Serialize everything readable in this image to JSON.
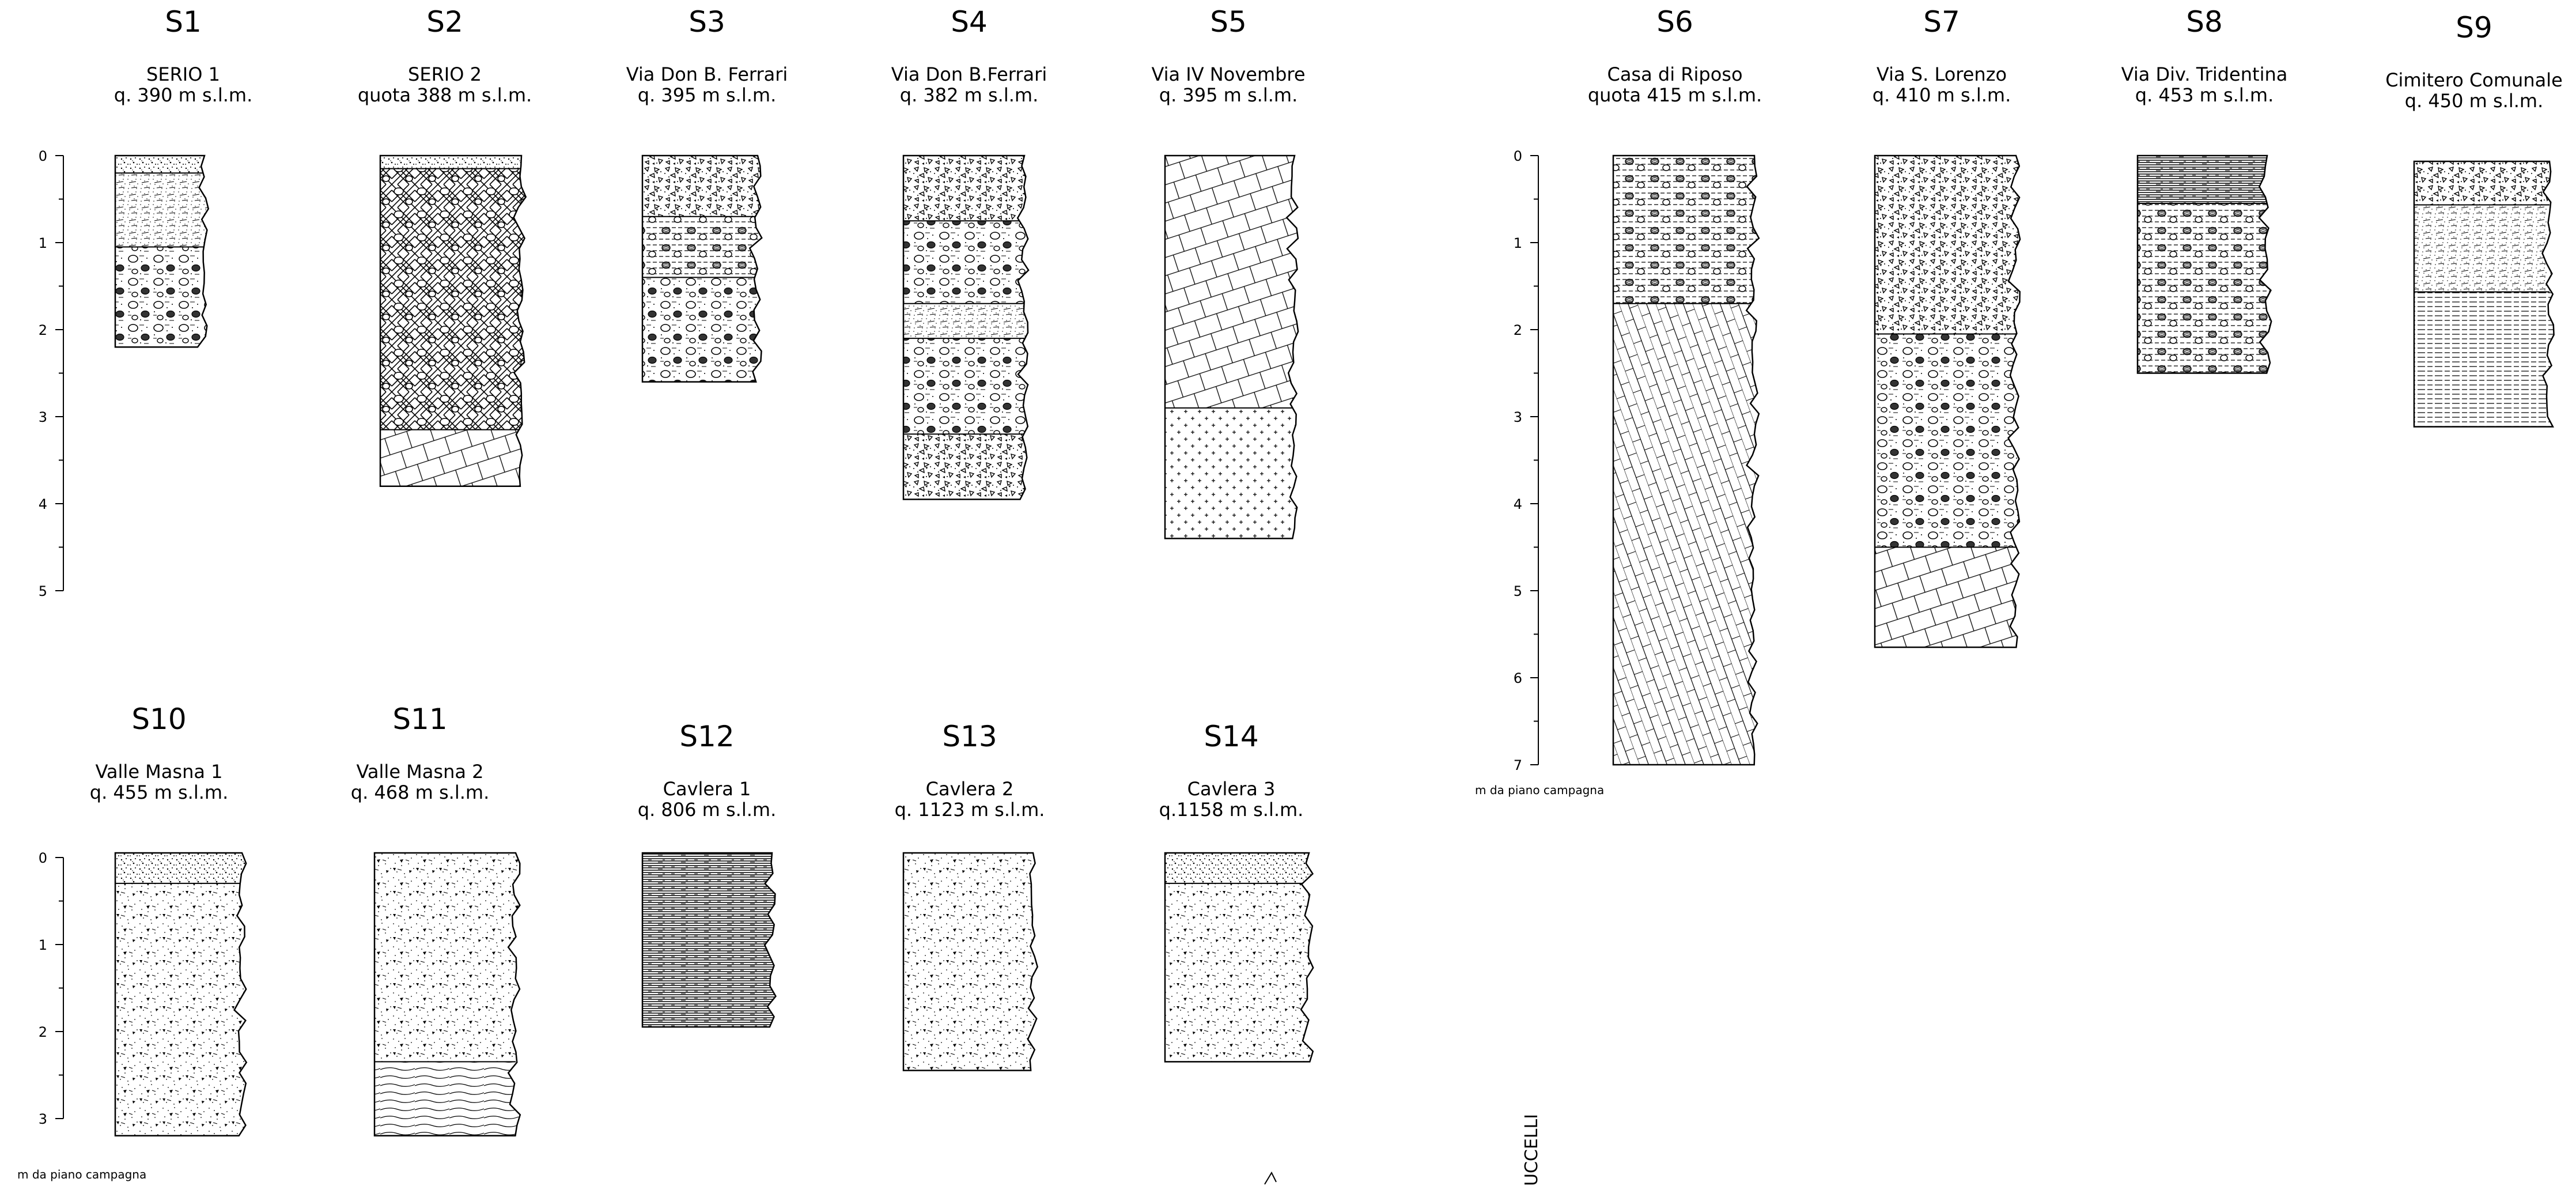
{
  "depth_unit_label": "m da piano campagna",
  "clipped_margin_text": "UCCELLI",
  "colors": {
    "ink": "#000000",
    "paper": "#ffffff"
  },
  "boreholes": [
    {
      "id": "S1",
      "name": "SERIO 1",
      "elevation": "q. 390 m s.l.m.",
      "total_depth_m": 2.2,
      "layers": [
        {
          "from": 0,
          "to": 0.2,
          "pattern": "topsoil"
        },
        {
          "from": 0.2,
          "to": 1.05,
          "pattern": "sand-lenses"
        },
        {
          "from": 1.05,
          "to": 2.2,
          "pattern": "gravel-sand"
        }
      ]
    },
    {
      "id": "S2",
      "name": "SERIO 2",
      "elevation": "quota 388 m s.l.m.",
      "total_depth_m": 3.8,
      "layers": [
        {
          "from": 0,
          "to": 0.15,
          "pattern": "topsoil"
        },
        {
          "from": 0.15,
          "to": 3.15,
          "pattern": "cross-hatch-gravel"
        },
        {
          "from": 3.15,
          "to": 3.8,
          "pattern": "bedrock"
        }
      ]
    },
    {
      "id": "S3",
      "name": "Via Don B. Ferrari",
      "elevation": "q. 395 m s.l.m.",
      "total_depth_m": 2.6,
      "layers": [
        {
          "from": 0,
          "to": 0.7,
          "pattern": "breccia"
        },
        {
          "from": 0.7,
          "to": 1.4,
          "pattern": "silty-gravel"
        },
        {
          "from": 1.4,
          "to": 2.6,
          "pattern": "gravel-sand"
        }
      ]
    },
    {
      "id": "S4",
      "name": "Via Don B.Ferrari",
      "elevation": "q. 382 m s.l.m.",
      "total_depth_m": 3.95,
      "layers": [
        {
          "from": 0,
          "to": 0.75,
          "pattern": "breccia"
        },
        {
          "from": 0.75,
          "to": 1.7,
          "pattern": "gravel-sand"
        },
        {
          "from": 1.7,
          "to": 2.1,
          "pattern": "sand-lenses"
        },
        {
          "from": 2.1,
          "to": 3.2,
          "pattern": "gravel-sand"
        },
        {
          "from": 3.2,
          "to": 3.95,
          "pattern": "breccia"
        }
      ]
    },
    {
      "id": "S5",
      "name": "Via IV Novembre",
      "elevation": "q. 395 m s.l.m.",
      "total_depth_m": 4.4,
      "layers": [
        {
          "from": 0,
          "to": 2.9,
          "pattern": "bedrock"
        },
        {
          "from": 2.9,
          "to": 4.4,
          "pattern": "crosses"
        }
      ]
    },
    {
      "id": "S6",
      "name": "Casa di Riposo",
      "elevation": "quota 415 m s.l.m.",
      "total_depth_m": 7.0,
      "layers": [
        {
          "from": 0,
          "to": 1.7,
          "pattern": "silty-gravel"
        },
        {
          "from": 1.7,
          "to": 7.0,
          "pattern": "bedrock-wedge"
        }
      ]
    },
    {
      "id": "S7",
      "name": "Via S. Lorenzo",
      "elevation": "q. 410 m s.l.m.",
      "total_depth_m": 5.65,
      "layers": [
        {
          "from": 0,
          "to": 2.05,
          "pattern": "breccia"
        },
        {
          "from": 2.05,
          "to": 4.5,
          "pattern": "gravel-sand"
        },
        {
          "from": 4.5,
          "to": 5.65,
          "pattern": "bedrock"
        }
      ]
    },
    {
      "id": "S8",
      "name": "Via Div. Tridentina",
      "elevation": "q. 453 m s.l.m.",
      "total_depth_m": 2.5,
      "layers": [
        {
          "from": 0,
          "to": 0.55,
          "pattern": "laminated"
        },
        {
          "from": 0.55,
          "to": 2.5,
          "pattern": "silty-gravel"
        }
      ]
    },
    {
      "id": "S9",
      "name": "Cimitero Comunale",
      "elevation": "q. 450 m s.l.m.",
      "total_depth_m": 3.05,
      "layers": [
        {
          "from": 0,
          "to": 0.5,
          "pattern": "breccia"
        },
        {
          "from": 0.5,
          "to": 1.5,
          "pattern": "sand-lenses"
        },
        {
          "from": 1.5,
          "to": 3.05,
          "pattern": "silt"
        }
      ]
    },
    {
      "id": "S10",
      "name": "Valle Masna 1",
      "elevation": "q. 455 m s.l.m.",
      "total_depth_m": 3.25,
      "layers": [
        {
          "from": 0,
          "to": 0.35,
          "pattern": "topsoil"
        },
        {
          "from": 0.35,
          "to": 3.25,
          "pattern": "debris"
        }
      ]
    },
    {
      "id": "S11",
      "name": "Valle Masna 2",
      "elevation": "q. 468 m s.l.m.",
      "total_depth_m": 3.25,
      "layers": [
        {
          "from": 0,
          "to": 2.4,
          "pattern": "debris"
        },
        {
          "from": 2.4,
          "to": 3.25,
          "pattern": "wavy-lines"
        }
      ]
    },
    {
      "id": "S12",
      "name": "Cavlera 1",
      "elevation": "q. 806 m s.l.m.",
      "total_depth_m": 2.0,
      "layers": [
        {
          "from": 0,
          "to": 2.0,
          "pattern": "laminated"
        }
      ]
    },
    {
      "id": "S13",
      "name": "Cavlera 2",
      "elevation": "q. 1123 m s.l.m.",
      "total_depth_m": 2.5,
      "layers": [
        {
          "from": 0,
          "to": 2.5,
          "pattern": "debris"
        }
      ]
    },
    {
      "id": "S14",
      "name": "Cavlera 3",
      "elevation": "q.1158 m s.l.m.",
      "total_depth_m": 2.4,
      "layers": [
        {
          "from": 0,
          "to": 0.35,
          "pattern": "topsoil"
        },
        {
          "from": 0.35,
          "to": 2.4,
          "pattern": "debris"
        }
      ]
    }
  ],
  "depth_scales": [
    {
      "name": "scale-top-left",
      "ticks": [
        "0",
        "1",
        "2",
        "3",
        "4",
        "5"
      ]
    },
    {
      "name": "scale-top-right",
      "ticks": [
        "0",
        "1",
        "2",
        "3",
        "4",
        "5",
        "6",
        "7"
      ]
    },
    {
      "name": "scale-bottom-left",
      "ticks": [
        "0",
        "1",
        "2",
        "3"
      ]
    }
  ]
}
